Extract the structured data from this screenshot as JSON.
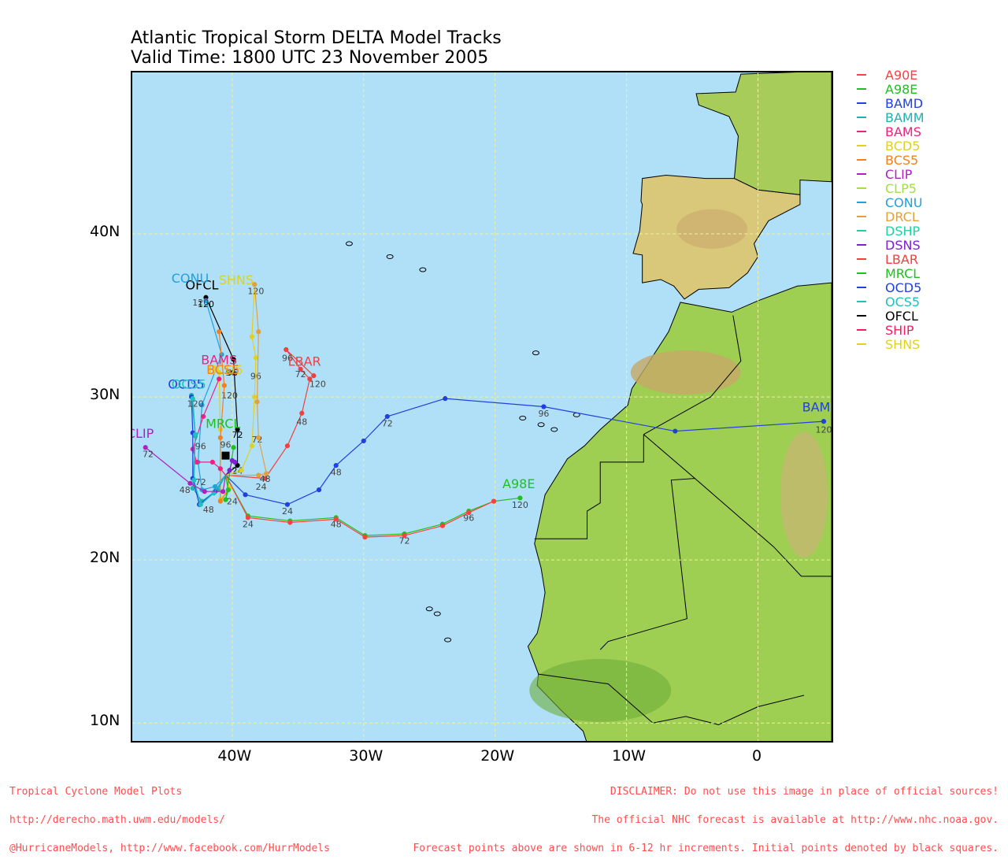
{
  "title": {
    "line1": "Atlantic Tropical Storm DELTA Model Tracks",
    "line2": "Valid Time: 1800 UTC 23 November 2005"
  },
  "axes": {
    "y_ticks": [
      {
        "label": "40N",
        "lat": 40
      },
      {
        "label": "30N",
        "lat": 30
      },
      {
        "label": "20N",
        "lat": 20
      },
      {
        "label": "10N",
        "lat": 10
      }
    ],
    "x_ticks": [
      {
        "label": "40W",
        "lon": -40
      },
      {
        "label": "30W",
        "lon": -30
      },
      {
        "label": "20W",
        "lon": -20
      },
      {
        "label": "10W",
        "lon": -10
      },
      {
        "label": "0",
        "lon": 0
      }
    ]
  },
  "legend": [
    {
      "name": "A90E",
      "color": "#ff4040"
    },
    {
      "name": "A98E",
      "color": "#20c020"
    },
    {
      "name": "BAMD",
      "color": "#2040e0"
    },
    {
      "name": "BAMM",
      "color": "#20b0b0"
    },
    {
      "name": "BAMS",
      "color": "#f02080"
    },
    {
      "name": "BCD5",
      "color": "#e0d020"
    },
    {
      "name": "BCS5",
      "color": "#f08020"
    },
    {
      "name": "CLIP",
      "color": "#b020c0"
    },
    {
      "name": "CLP5",
      "color": "#a0e040"
    },
    {
      "name": "CONU",
      "color": "#20a0e0"
    },
    {
      "name": "DRCL",
      "color": "#e0a040"
    },
    {
      "name": "DSHP",
      "color": "#20d0a0"
    },
    {
      "name": "DSNS",
      "color": "#8020d0"
    },
    {
      "name": "LBAR",
      "color": "#f04040"
    },
    {
      "name": "MRCL",
      "color": "#20c020"
    },
    {
      "name": "OCD5",
      "color": "#2040e0"
    },
    {
      "name": "OCS5",
      "color": "#20c0c0"
    },
    {
      "name": "OFCL",
      "color": "#000000"
    },
    {
      "name": "SHIP",
      "color": "#f02060"
    },
    {
      "name": "SHNS",
      "color": "#e0d020"
    }
  ],
  "tracks": [
    {
      "name": "BAMD",
      "color": "#2040e0",
      "label": "BAMD",
      "points": [
        [
          -40.5,
          25.2
        ],
        [
          -39,
          24
        ],
        [
          -35.8,
          23.4
        ],
        [
          -33.4,
          24.3
        ],
        [
          -32.1,
          25.8
        ],
        [
          -30,
          27.3
        ],
        [
          -28.2,
          28.8
        ],
        [
          -23.8,
          29.9
        ],
        [
          -16.3,
          29.4
        ],
        [
          -6.3,
          27.9
        ],
        [
          5,
          28.5
        ]
      ],
      "time_labels": [
        {
          "t": "24",
          "lon": -35.8,
          "lat": 22.8
        },
        {
          "t": "48",
          "lon": -32.1,
          "lat": 25.2
        },
        {
          "t": "72",
          "lon": -28.2,
          "lat": 28.2
        },
        {
          "t": "96",
          "lon": -16.3,
          "lat": 28.8
        },
        {
          "t": "120",
          "lon": 5,
          "lat": 27.8
        }
      ],
      "label_pos": [
        4.8,
        29.1
      ]
    },
    {
      "name": "A98E",
      "color": "#20c020",
      "label": "A98E",
      "points": [
        [
          -40.5,
          25.2
        ],
        [
          -38.8,
          22.7
        ],
        [
          -35.6,
          22.4
        ],
        [
          -32.1,
          22.6
        ],
        [
          -29.9,
          21.5
        ],
        [
          -26.9,
          21.6
        ],
        [
          -24,
          22.2
        ],
        [
          -22,
          23
        ],
        [
          -20.1,
          23.6
        ],
        [
          -18.1,
          23.8
        ]
      ],
      "time_labels": [
        {
          "t": "24",
          "lon": -38.8,
          "lat": 22.0
        },
        {
          "t": "48",
          "lon": -32.1,
          "lat": 22.0
        },
        {
          "t": "72",
          "lon": -26.9,
          "lat": 21.0
        },
        {
          "t": "96",
          "lon": -22,
          "lat": 22.4
        },
        {
          "t": "120",
          "lon": -18.1,
          "lat": 23.2
        }
      ],
      "label_pos": [
        -18.2,
        24.4
      ]
    },
    {
      "name": "A90E",
      "color": "#ff4040",
      "label": "",
      "points": [
        [
          -40.5,
          25.2
        ],
        [
          -38.8,
          22.6
        ],
        [
          -35.6,
          22.3
        ],
        [
          -32.1,
          22.5
        ],
        [
          -29.9,
          21.4
        ],
        [
          -26.9,
          21.5
        ],
        [
          -24,
          22.1
        ],
        [
          -22,
          22.9
        ],
        [
          -20.1,
          23.6
        ]
      ],
      "time_labels": [],
      "label_pos": null
    },
    {
      "name": "LBAR",
      "color": "#f04040",
      "label": "LBAR",
      "points": [
        [
          -40.5,
          25.2
        ],
        [
          -37.5,
          25
        ],
        [
          -35.8,
          27
        ],
        [
          -34.7,
          29
        ],
        [
          -34.1,
          31.1
        ],
        [
          -34.8,
          31.7
        ],
        [
          -35.9,
          32.9
        ],
        [
          -33.8,
          31.3
        ]
      ],
      "time_labels": [
        {
          "t": "48",
          "lon": -34.7,
          "lat": 28.3
        },
        {
          "t": "72",
          "lon": -34.8,
          "lat": 31.2
        },
        {
          "t": "96",
          "lon": -35.8,
          "lat": 32.2
        },
        {
          "t": "120",
          "lon": -33.5,
          "lat": 30.6
        }
      ],
      "label_pos": [
        -34.5,
        31.9
      ]
    },
    {
      "name": "OFCL",
      "color": "#000000",
      "label": "OFCL",
      "points": [
        [
          -40.5,
          25.2
        ],
        [
          -39.6,
          25.8
        ],
        [
          -39.6,
          28
        ],
        [
          -39.9,
          32.3
        ],
        [
          -42,
          36.1
        ]
      ],
      "time_labels": [
        {
          "t": "24",
          "lon": -39.6,
          "lat": 25.3
        },
        {
          "t": "72",
          "lon": -39.6,
          "lat": 27.5
        },
        {
          "t": "96",
          "lon": -40,
          "lat": 31.3
        },
        {
          "t": "120",
          "lon": -42,
          "lat": 35.5
        }
      ],
      "label_pos": [
        -42.3,
        36.6
      ]
    },
    {
      "name": "CONU",
      "color": "#20a0e0",
      "label": "CONU",
      "points": [
        [
          -40.5,
          25.2
        ],
        [
          -41.3,
          24.5
        ],
        [
          -42.3,
          24.3
        ],
        [
          -42.6,
          26
        ],
        [
          -42.3,
          29.5
        ],
        [
          -40.8,
          32.6
        ],
        [
          -42,
          35.9
        ]
      ],
      "time_labels": [
        {
          "t": "120",
          "lon": -42.4,
          "lat": 35.6
        }
      ],
      "label_pos": [
        -43.2,
        37.0
      ]
    },
    {
      "name": "SHNS",
      "color": "#e0d020",
      "label": "SHNS",
      "points": [
        [
          -40.5,
          25.2
        ],
        [
          -39.3,
          25.5
        ],
        [
          -38.5,
          27
        ],
        [
          -38.3,
          30
        ],
        [
          -38.2,
          32.4
        ],
        [
          -38.5,
          33.7
        ],
        [
          -38.3,
          36.9
        ]
      ],
      "time_labels": [
        {
          "t": "24",
          "lon": -37.8,
          "lat": 24.3
        },
        {
          "t": "48",
          "lon": -37.5,
          "lat": 24.8
        },
        {
          "t": "72",
          "lon": -38.1,
          "lat": 27.2
        },
        {
          "t": "96",
          "lon": -38.2,
          "lat": 31.1
        },
        {
          "t": "120",
          "lon": -38.2,
          "lat": 36.3
        }
      ],
      "label_pos": [
        -39.7,
        36.9
      ]
    },
    {
      "name": "DRCL",
      "color": "#e0a040",
      "label": "",
      "points": [
        [
          -40.5,
          25.2
        ],
        [
          -38,
          25.2
        ],
        [
          -37.4,
          25.3
        ],
        [
          -38,
          27.5
        ],
        [
          -38.1,
          29.7
        ],
        [
          -38,
          34
        ],
        [
          -38.3,
          36.9
        ]
      ],
      "time_labels": [],
      "label_pos": null
    },
    {
      "name": "BCD5",
      "color": "#e0d020",
      "label": "BCD5",
      "points": [
        [
          -40.5,
          25.2
        ],
        [
          -40.2,
          24.4
        ],
        [
          -40.9,
          23.7
        ],
        [
          -40.9,
          28
        ],
        [
          -41,
          31.5
        ]
      ],
      "time_labels": [
        {
          "t": "96",
          "lon": -40.1,
          "lat": 31.3
        },
        {
          "t": "120",
          "lon": -40.2,
          "lat": 29.9
        }
      ],
      "label_pos": [
        -40.5,
        31.4
      ]
    },
    {
      "name": "BCS5",
      "color": "#f08020",
      "label": "BCS5",
      "points": [
        [
          -40.5,
          25.2
        ],
        [
          -40.3,
          24.3
        ],
        [
          -40.9,
          23.6
        ],
        [
          -40.9,
          27.5
        ],
        [
          -40.6,
          30.7
        ],
        [
          -41,
          34
        ]
      ],
      "time_labels": [],
      "label_pos": [
        -40.7,
        31.4
      ]
    },
    {
      "name": "BAMS",
      "color": "#f02080",
      "label": "BAMS",
      "points": [
        [
          -40.5,
          25.2
        ],
        [
          -40.9,
          25.6
        ],
        [
          -41.5,
          26
        ],
        [
          -42.7,
          26
        ],
        [
          -43,
          26.8
        ],
        [
          -42.2,
          28.8
        ],
        [
          -41,
          31.1
        ]
      ],
      "time_labels": [],
      "label_pos": [
        -41,
        32.0
      ]
    },
    {
      "name": "BAMM",
      "color": "#20b0b0",
      "label": "",
      "points": [
        [
          -40.5,
          25.2
        ],
        [
          -41.1,
          24.3
        ],
        [
          -42.3,
          23.6
        ],
        [
          -43.0,
          24.4
        ],
        [
          -42.8,
          27.6
        ],
        [
          -43.1,
          30.1
        ]
      ],
      "time_labels": [],
      "label_pos": null
    },
    {
      "name": "OCD5",
      "color": "#2040e0",
      "label": "OCD5",
      "points": [
        [
          -40.5,
          25.2
        ],
        [
          -41.3,
          24.2
        ],
        [
          -42.5,
          23.4
        ],
        [
          -43,
          25
        ],
        [
          -43,
          27.8
        ],
        [
          -43.1,
          30
        ]
      ],
      "time_labels": [
        {
          "t": "48",
          "lon": -41.8,
          "lat": 22.9
        },
        {
          "t": "72",
          "lon": -42.4,
          "lat": 24.6
        },
        {
          "t": "96",
          "lon": -42.4,
          "lat": 26.8
        },
        {
          "t": "120",
          "lon": -42.8,
          "lat": 29.4
        }
      ],
      "label_pos": [
        -43.5,
        30.5
      ]
    },
    {
      "name": "OCS5",
      "color": "#20c0c0",
      "label": "OCS5",
      "points": [
        [
          -40.5,
          25.2
        ],
        [
          -41.4,
          24.1
        ],
        [
          -42.4,
          23.4
        ],
        [
          -42.9,
          24.9
        ],
        [
          -42.8,
          27.7
        ],
        [
          -43,
          29.9
        ]
      ],
      "time_labels": [],
      "label_pos": [
        -43.3,
        30.5
      ]
    },
    {
      "name": "CLIP",
      "color": "#b020c0",
      "label": "CLIP",
      "points": [
        [
          -40.5,
          25.2
        ],
        [
          -40.7,
          24.2
        ],
        [
          -42.1,
          24.2
        ],
        [
          -43.2,
          24.7
        ],
        [
          -46.6,
          26.9
        ]
      ],
      "time_labels": [
        {
          "t": "48",
          "lon": -43.6,
          "lat": 24.1
        },
        {
          "t": "72",
          "lon": -46.4,
          "lat": 26.3
        }
      ],
      "label_pos": [
        -47.0,
        27.5
      ]
    },
    {
      "name": "MRCL",
      "color": "#20c020",
      "label": "MRCL",
      "points": [
        [
          -40.5,
          25.2
        ],
        [
          -40.3,
          24.3
        ],
        [
          -40.5,
          23.7
        ],
        [
          -39.9,
          26.9
        ]
      ],
      "time_labels": [
        {
          "t": "24",
          "lon": -40.0,
          "lat": 23.4
        },
        {
          "t": "96",
          "lon": -40.5,
          "lat": 26.9
        }
      ],
      "label_pos": [
        -40.7,
        28.1
      ]
    },
    {
      "name": "DSNS",
      "color": "#8020d0",
      "label": "",
      "points": [
        [
          -40.5,
          25.2
        ],
        [
          -40.2,
          25.5
        ],
        [
          -40,
          26.1
        ],
        [
          -39.8,
          26
        ]
      ],
      "time_labels": [],
      "label_pos": null
    }
  ],
  "geo_labels": {
    "start_marker": "initial-position"
  },
  "footer": {
    "left_line1": "Tropical Cyclone Model Plots",
    "left_line2": "http://derecho.math.uwm.edu/models/",
    "left_line3": "@HurricaneModels, http://www.facebook.com/HurrModels",
    "right_line1": "DISCLAIMER: Do not use this image in place of official sources!",
    "right_line2": "The official NHC forecast is available at http://www.nhc.noaa.gov.",
    "right_line3": "Forecast points above are shown in 6-12 hr increments. Initial points denoted by black squares."
  }
}
